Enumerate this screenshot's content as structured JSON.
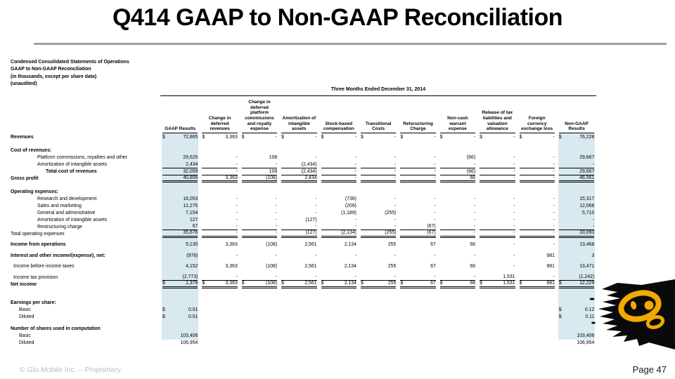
{
  "slide": {
    "title": "Q414 GAAP to Non-GAAP Reconciliation",
    "footer_left": "© Glu Mobile Inc. – Proprietary",
    "footer_right": "Page 47",
    "colors": {
      "column_highlight": "#d8e9f0",
      "divider_gray": "#9aa2aa",
      "logo_black": "#0a0a0a",
      "logo_yellow": "#F2A900"
    }
  },
  "statement": {
    "intro_lines": [
      "Condensed Consolidated Statements of Operations",
      "GAAP to Non-GAAP Reconciliation",
      "(in thousands, except per share data)",
      "(unaudited)"
    ],
    "period_header": "Three Months Ended December 31, 2014",
    "columns": [
      "GAAP Results",
      "Change in deferred revenues",
      "Change in deferred platform commissions and royalty expense",
      "Amortization of intangible assets",
      "Stock-based compensation",
      "Transitional Costs",
      "Retsructuring Charge",
      "Non-cash warrant expense",
      "Release of tax liabilities and valuation allowance",
      "Foreign currency exchange loss",
      "Non-GAAP Results"
    ],
    "rows": [
      {
        "label": "Revenues",
        "b": 1,
        "h": 10.5,
        "d": "all",
        "v": [
          "72,865",
          "3,363",
          "-",
          "-",
          "-",
          "-",
          "-",
          "-",
          "-",
          "-",
          "76,228"
        ]
      },
      {
        "spacer": 9
      },
      {
        "label": "Cost of revenues:",
        "b": 1
      },
      {
        "label": "Platform commissions, royalties and other",
        "i": 2,
        "v": [
          "29,625",
          "-",
          "108",
          "-",
          "-",
          "-",
          "-",
          "(66)",
          "-",
          "-",
          "29,667"
        ]
      },
      {
        "label": "Amortization of intangible assets",
        "i": 2,
        "u": "single",
        "v": [
          "2,434",
          "-",
          "-",
          "(2,434)",
          "-",
          "-",
          "-",
          "-",
          "-",
          "-",
          "-"
        ]
      },
      {
        "label": "Total cost of revenues",
        "i": 3,
        "b": 1,
        "u": "single",
        "v": [
          "32,059",
          "-",
          "108",
          "(2,434)",
          "-",
          "-",
          "-",
          "(66)",
          "-",
          "-",
          "29,667"
        ]
      },
      {
        "label": "Gross profit",
        "b": 1,
        "h": 10.5,
        "u": "double",
        "v": [
          "40,806",
          "3,363",
          "(108)",
          "2,434",
          "-",
          "-",
          "-",
          "66",
          "-",
          "-",
          "46,561"
        ]
      },
      {
        "spacer": 8
      },
      {
        "label": "Operating expenses:",
        "b": 1
      },
      {
        "label": "Research and development",
        "i": 2,
        "v": [
          "16,053",
          "-",
          "-",
          "-",
          "(736)",
          "-",
          "-",
          "-",
          "-",
          "-",
          "15,317"
        ]
      },
      {
        "label": "Sales and marketing",
        "i": 2,
        "v": [
          "12,275",
          "-",
          "-",
          "-",
          "(209)",
          "-",
          "-",
          "-",
          "-",
          "-",
          "12,066"
        ]
      },
      {
        "label": "General and administrative",
        "i": 2,
        "v": [
          "7,154",
          "-",
          "-",
          "-",
          "(1,189)",
          "(255)",
          "-",
          "-",
          "-",
          "-",
          "5,710"
        ]
      },
      {
        "label": "Amortization of intangible assets",
        "i": 2,
        "v": [
          "127",
          "-",
          "-",
          "(127)",
          "-",
          "-",
          "-",
          "-",
          "-",
          "-",
          "-"
        ]
      },
      {
        "label": "Restructuring charge",
        "i": 2,
        "u": "single",
        "v": [
          "67",
          "-",
          "-",
          "-",
          "-",
          "-",
          "(67)",
          "-",
          "-",
          "-",
          "-"
        ]
      },
      {
        "label": "Total operating expenses",
        "h": 10.5,
        "u": "double",
        "v": [
          "35,676",
          "-",
          "-",
          "(127)",
          "(2,134)",
          "(255)",
          "(67)",
          "-",
          "-",
          "-",
          "33,093"
        ]
      },
      {
        "spacer": 5
      },
      {
        "label": "Income from operations",
        "b": 1,
        "h": 10.5,
        "v": [
          "5,130",
          "3,363",
          "(108)",
          "2,561",
          "2,134",
          "255",
          "67",
          "66",
          "-",
          "-",
          "13,468"
        ]
      },
      {
        "spacer": 5
      },
      {
        "label": "Interest and other income/(expense), net:",
        "b": 1,
        "h": 10.5,
        "v": [
          "(978)",
          "-",
          "-",
          "-",
          "-",
          "-",
          "-",
          "-",
          "-",
          "981",
          "3"
        ]
      },
      {
        "spacer": 5
      },
      {
        "label": "Income before income taxes",
        "i": 4,
        "h": 10.5,
        "v": [
          "4,152",
          "3,363",
          "(108)",
          "2,561",
          "2,134",
          "255",
          "67",
          "66",
          "-",
          "981",
          "13,471"
        ]
      },
      {
        "spacer": 5
      },
      {
        "label": "Income tax provision",
        "i": 4,
        "u": "single",
        "v": [
          "(2,773)",
          "-",
          "-",
          "-",
          "-",
          "-",
          "-",
          "-",
          "1,531",
          "-",
          "(1,242)"
        ]
      },
      {
        "label": "Net income",
        "b": 1,
        "h": 10.5,
        "d": "all",
        "u": "double",
        "v": [
          "1,379",
          "3,363",
          "(108)",
          "2,561",
          "2,134",
          "255",
          "67",
          "66",
          "1,531",
          "981",
          "12,229"
        ]
      },
      {
        "spacer": 16
      },
      {
        "label": "Earnings per share:",
        "b": 1
      },
      {
        "label": "Basic",
        "i": 1,
        "d": "ends",
        "v": [
          "0.01",
          "",
          "",
          "",
          "",
          "",
          "",
          "",
          "",
          "",
          "0.12"
        ]
      },
      {
        "label": "Diluted",
        "i": 1,
        "d": "ends",
        "v": [
          "0.01",
          "",
          "",
          "",
          "",
          "",
          "",
          "",
          "",
          "",
          "0.11"
        ]
      },
      {
        "spacer": 7
      },
      {
        "label": "Number of shares used in computation",
        "b": 1
      },
      {
        "label": "Basic",
        "i": 1,
        "v": [
          "103,406",
          "",
          "",
          "",
          "",
          "",
          "",
          "",
          "",
          "",
          "103,406"
        ]
      },
      {
        "label": "Diluted",
        "i": 1,
        "v": [
          "106,954",
          "",
          "",
          "",
          "",
          "",
          "",
          "",
          "",
          "",
          "106,954"
        ]
      }
    ]
  }
}
